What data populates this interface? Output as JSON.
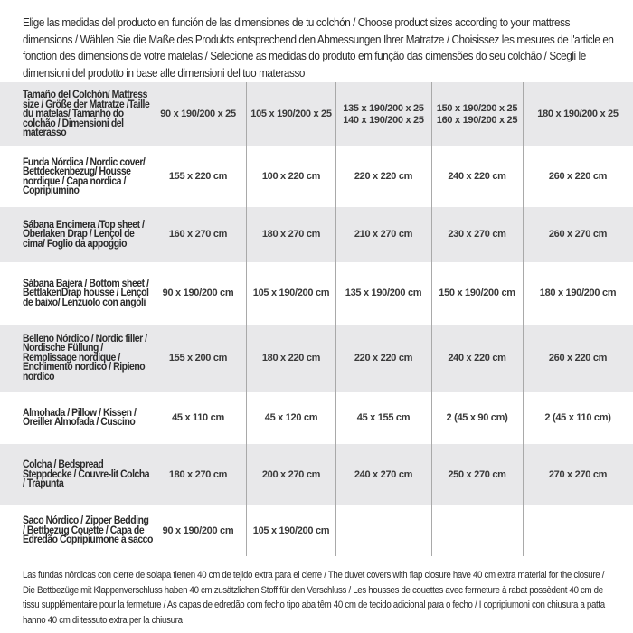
{
  "intro": "Elige las medidas del producto en función de las dimensiones de tu colchón / Choose product sizes according to your mattress dimensions / Wählen Sie die Maße des Produkts entsprechend den Abmessungen Ihrer Matratze / Choisissez les mesures de l'article en fonction des dimensions de votre matelas / Selecione as medidas do produto em função das dimensões do seu colchão / Scegli le dimensioni del prodotto in base alle dimensioni del tuo materasso",
  "table": {
    "rows": [
      {
        "label": "Tamaño del Colchón/ Mattress size / Größe der Matratze /Taille du matelas/ Tamanho do colchão / Dimensioni del materasso",
        "cells": [
          "90 x 190/200 x 25",
          "105 x 190/200 x 25",
          "135 x 190/200 x 25\n140 x 190/200 x 25",
          "150 x 190/200 x 25\n160 x 190/200 x 25",
          "180 x 190/200 x 25"
        ]
      },
      {
        "label": "Funda Nórdica /  Nordic cover/ Bettdeckenbezug/ Housse nordique  / Capa nordica / Copripiumino",
        "cells": [
          "155 x 220 cm",
          "100 x 220 cm",
          "220 x 220 cm",
          "240 x 220 cm",
          "260 x 220 cm"
        ]
      },
      {
        "label": "Sábana Encimera /Top sheet / Oberlaken Drap / Lençol de cima/ Foglio da appoggio",
        "cells": [
          "160 x 270 cm",
          "180 x 270 cm",
          "210 x 270 cm",
          "230 x 270 cm",
          "260 x 270 cm"
        ]
      },
      {
        "label": "Sábana Bajera / Bottom sheet / BettlakenDrap housse / Lençol de baixo/ Lenzuolo con angoli",
        "cells": [
          "90 x 190/200 cm",
          "105 x 190/200 cm",
          "135 x 190/200 cm",
          "150 x 190/200 cm",
          "180 x 190/200 cm"
        ]
      },
      {
        "label": "Belleno Nórdico / Nordic filler / Nordische Füllung / Remplissage nordique / Enchimento nordico / Ripieno nordico",
        "cells": [
          "155 x 200 cm",
          "180 x 220 cm",
          "220 x 220 cm",
          "240 x 220 cm",
          "260 x 220 cm"
        ]
      },
      {
        "label": "Almohada  / Pillow / Kissen / Oreiller Almofada / Cuscino",
        "cells": [
          "45 x 110 cm",
          "45 x 120 cm",
          "45 x 155 cm",
          "2 (45 x 90 cm)",
          "2 (45 x 110 cm)"
        ]
      },
      {
        "label": "Colcha / Bedspread Steppdecke / Couvre-lit Colcha / Trapunta",
        "cells": [
          "180 x 270 cm",
          "200 x 270 cm",
          "240 x 270 cm",
          "250 x 270 cm",
          "270 x 270 cm"
        ]
      },
      {
        "label": "Saco Nórdico / Zipper Bedding / Bettbezug Couette  / Capa de Edredão Copripiumone a sacco",
        "cells": [
          "90 x 190/200 cm",
          "105 x 190/200 cm",
          "",
          "",
          ""
        ]
      }
    ]
  },
  "footnote": "Las fundas nórdicas con cierre de solapa tienen 40 cm de tejido extra para el cierre  / The duvet covers with flap closure have 40 cm extra material for the closure / Die Bettbezüge mit Klappenverschluss haben 40 cm zusätzlichen Stoff für den Verschluss / Les housses de couettes avec fermeture à rabat possèdent 40 cm de tissu supplémentaire pour la fermeture / As capas de edredão com fecho tipo aba têm 40 cm de tecido adicional para o fecho / I copripiumoni con chiusura a patta hanno 40 cm di tessuto extra per la chiusura",
  "colors": {
    "row_stripe": "#e8e8ea",
    "divider": "#a9a9a9",
    "text": "#2a2a2a"
  }
}
